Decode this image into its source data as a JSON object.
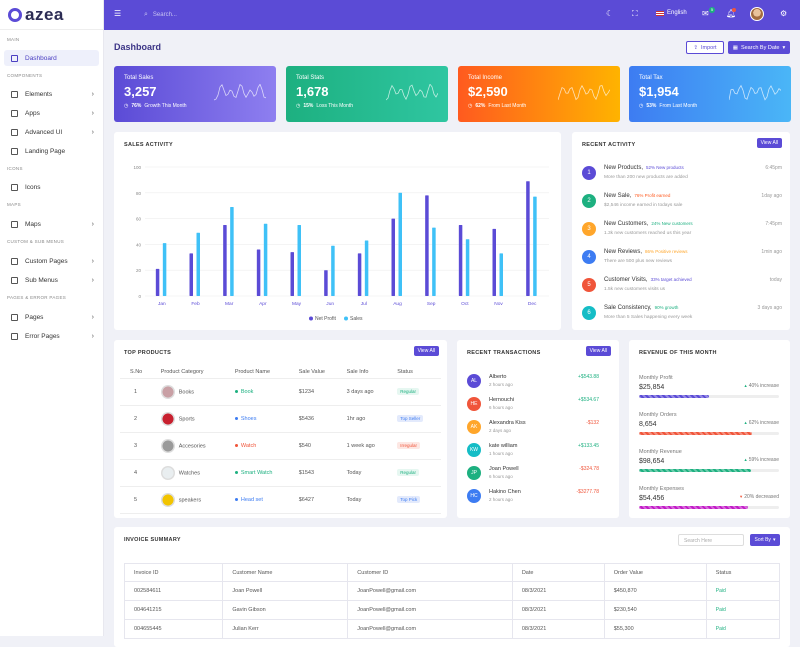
{
  "brand": {
    "name": "azea"
  },
  "sidebar": {
    "sections": [
      "MAIN",
      "COMPONENTS",
      "ICONS",
      "MAPS",
      "CUSTOM & SUB MENUS",
      "PAGES & ERROR PAGES"
    ],
    "items": [
      {
        "label": "Dashboard",
        "icon": "home-icon",
        "active": true
      },
      {
        "label": "Elements",
        "icon": "grid-icon"
      },
      {
        "label": "Apps",
        "icon": "apps-icon"
      },
      {
        "label": "Advanced UI",
        "icon": "layers-icon"
      },
      {
        "label": "Landing Page",
        "icon": "book-icon"
      },
      {
        "label": "Icons",
        "icon": "aperture-icon"
      },
      {
        "label": "Maps",
        "icon": "map-icon"
      },
      {
        "label": "Custom Pages",
        "icon": "file-icon"
      },
      {
        "label": "Sub Menus",
        "icon": "list-icon"
      },
      {
        "label": "Pages",
        "icon": "pages-icon"
      },
      {
        "label": "Error Pages",
        "icon": "alert-icon"
      }
    ]
  },
  "topbar": {
    "search_placeholder": "Search...",
    "language": "English",
    "mail_count": "5",
    "accent": "#5b4bd6"
  },
  "header": {
    "title": "Dashboard",
    "import_label": "Import",
    "date_label": "Search By Date"
  },
  "stats": [
    {
      "title": "Total Sales",
      "value": "3,257",
      "pct": "76%",
      "note": "Growth This Month",
      "colors": [
        "#5b4bd6",
        "#8e7ff0"
      ]
    },
    {
      "title": "Total Stats",
      "value": "1,678",
      "pct": "15%",
      "note": "Loss This Month",
      "colors": [
        "#1db080",
        "#2fc6a1"
      ]
    },
    {
      "title": "Total Income",
      "value": "$2,590",
      "pct": "62%",
      "note": "From Last Month",
      "colors": [
        "#ff5a1f",
        "#ffb300"
      ]
    },
    {
      "title": "Total Tax",
      "value": "$1,954",
      "pct": "53%",
      "note": "From Last Month",
      "colors": [
        "#3d7cf2",
        "#4ab6f7"
      ]
    }
  ],
  "sales": {
    "title": "SALES ACTIVITY",
    "legend": [
      "Net Profit",
      "Sales"
    ],
    "colors": [
      "#5b4bd6",
      "#3fc1f7"
    ]
  },
  "chart_data": {
    "type": "bar",
    "categories": [
      "Jan",
      "Feb",
      "Mar",
      "Apr",
      "May",
      "Jun",
      "Jul",
      "Aug",
      "Sep",
      "Oct",
      "Nov",
      "Dec"
    ],
    "series": [
      {
        "name": "Net Profit",
        "values": [
          21,
          33,
          55,
          36,
          34,
          20,
          33,
          60,
          78,
          55,
          52,
          89
        ]
      },
      {
        "name": "Sales",
        "values": [
          41,
          49,
          69,
          56,
          55,
          39,
          43,
          80,
          53,
          44,
          33,
          77
        ]
      }
    ],
    "yticks": [
      0,
      20,
      40,
      60,
      80,
      100
    ],
    "ylim": [
      0,
      100
    ],
    "legend": "bottom"
  },
  "activity": {
    "title": "RECENT ACTIVITY",
    "view_all": "View All",
    "items": [
      {
        "n": "1",
        "color": "#5b4bd6",
        "head": "New Products,",
        "tag": "52% New products",
        "tagcolor": "#5b4bd6",
        "desc": "More than 200 new products are added",
        "time": "6:45pm"
      },
      {
        "n": "2",
        "color": "#1db080",
        "head": "New Sale,",
        "tag": "76% Profit earned",
        "tagcolor": "#ff5a1f",
        "desc": "$2,546 income earned in todays sale",
        "time": "1day ago"
      },
      {
        "n": "3",
        "color": "#ffa62b",
        "head": "New Customers,",
        "tag": "24% New customers",
        "tagcolor": "#1db080",
        "desc": "1.3k new customers reached us this year",
        "time": "7:45pm"
      },
      {
        "n": "4",
        "color": "#3d7cf2",
        "head": "New Reviews,",
        "tag": "86% Positive reviews",
        "tagcolor": "#ffa62b",
        "desc": "There are 500 plus new reviews",
        "time": "1min ago"
      },
      {
        "n": "5",
        "color": "#f0553a",
        "head": "Customer Visits,",
        "tag": "33% target achieved",
        "tagcolor": "#5b4bd6",
        "desc": "1.5k new customers visits us",
        "time": "today"
      },
      {
        "n": "6",
        "color": "#15bdc6",
        "head": "Sale Consistency,",
        "tag": "90% growth",
        "tagcolor": "#1db080",
        "desc": "More than 5 Sales happening every week",
        "time": "3 days ago"
      }
    ]
  },
  "products": {
    "title": "TOP PRODUCTS",
    "view_all": "View All",
    "headers": [
      "S.No",
      "Product Category",
      "Product Name",
      "Sale Value",
      "Sale Info",
      "Status"
    ],
    "rows": [
      {
        "no": "1",
        "cat": "Books",
        "name": "Book",
        "namecolor": "#1db080",
        "value": "$1234",
        "info": "3 days ago",
        "status": "Regular",
        "sbg": "#e6f7f1",
        "sfg": "#1db080",
        "img": "#c9a0a5"
      },
      {
        "no": "2",
        "cat": "Sports",
        "name": "Shoes",
        "namecolor": "#3d7cf2",
        "value": "$5436",
        "info": "1hr ago",
        "status": "Top Seller",
        "sbg": "#e3eafc",
        "sfg": "#3d7cf2",
        "img": "#c8202f"
      },
      {
        "no": "3",
        "cat": "Accesories",
        "name": "Watch",
        "namecolor": "#f0553a",
        "value": "$540",
        "info": "1 week ago",
        "status": "Irregular",
        "sbg": "#fde7e3",
        "sfg": "#f0553a",
        "img": "#9a9a9a"
      },
      {
        "no": "4",
        "cat": "Watches",
        "name": "Smart Watch",
        "namecolor": "#1db080",
        "value": "$1543",
        "info": "Today",
        "status": "Regular",
        "sbg": "#e6f7f1",
        "sfg": "#1db080",
        "img": "#e9eef0"
      },
      {
        "no": "5",
        "cat": "speakers",
        "name": "Head set",
        "namecolor": "#3d7cf2",
        "value": "$6427",
        "info": "Today",
        "status": "Top Pick",
        "sbg": "#e3eafc",
        "sfg": "#3d7cf2",
        "img": "#f2c400"
      }
    ]
  },
  "transactions": {
    "title": "RECENT TRANSACTIONS",
    "view_all": "View All",
    "items": [
      {
        "ini": "AL",
        "color": "#5b4bd6",
        "name": "Alberto",
        "time": "2 hours ago",
        "amount": "+$543.88",
        "amtcolor": "#1db080"
      },
      {
        "ini": "HE",
        "color": "#f0553a",
        "name": "Hernouchi",
        "time": "6 hours ago",
        "amount": "+$534.67",
        "amtcolor": "#1db080"
      },
      {
        "ini": "AK",
        "color": "#ffa62b",
        "name": "Alexandra Kiss",
        "time": "2 days ago",
        "amount": "-$132",
        "amtcolor": "#f0553a"
      },
      {
        "ini": "KW",
        "color": "#15bdc6",
        "name": "kate william",
        "time": "1 hours ago",
        "amount": "+$133.45",
        "amtcolor": "#1db080"
      },
      {
        "ini": "JP",
        "color": "#1db080",
        "name": "Joan Powell",
        "time": "6 hours ago",
        "amount": "-$324.78",
        "amtcolor": "#f0553a"
      },
      {
        "ini": "HC",
        "color": "#3d7cf2",
        "name": "Hakino Chen",
        "time": "2 hours ago",
        "amount": "-$3277.78",
        "amtcolor": "#f0553a"
      }
    ]
  },
  "revenue": {
    "title": "REVENUE OF THIS MONTH",
    "items": [
      {
        "label": "Monthly Profit",
        "value": "$25,854",
        "change": "40% increase",
        "dir": "up",
        "fill": 0.5,
        "color": "#5b4bd6"
      },
      {
        "label": "Monthly Orders",
        "value": "8,654",
        "change": "62% increase",
        "dir": "up",
        "fill": 0.81,
        "color": "#f0553a"
      },
      {
        "label": "Monthly Revenue",
        "value": "$98,654",
        "change": "59% increase",
        "dir": "up",
        "fill": 0.8,
        "color": "#1db080"
      },
      {
        "label": "Monthly Expenses",
        "value": "$54,456",
        "change": "20% decreased",
        "dir": "down",
        "fill": 0.78,
        "color": "#c21bc7"
      }
    ]
  },
  "invoice": {
    "title": "INVOICE SUMMARY",
    "search_placeholder": "Search Here",
    "sort_label": "Sort By",
    "headers": [
      "Invoice ID",
      "Customer Name",
      "Customer ID",
      "Date",
      "Order Value",
      "Status"
    ],
    "rows": [
      {
        "id": "002584611",
        "name": "Joan Powell",
        "cid": "JoanPowell@gmail.com",
        "date": "08/3/2021",
        "value": "$450,870",
        "status": "Paid"
      },
      {
        "id": "004641215",
        "name": "Gavin Gibson",
        "cid": "JoanPowell@gmail.com",
        "date": "08/3/2021",
        "value": "$230,540",
        "status": "Paid"
      },
      {
        "id": "004655445",
        "name": "Julian Kerr",
        "cid": "JoanPowell@gmail.com",
        "date": "08/3/2021",
        "value": "$55,300",
        "status": "Paid"
      }
    ]
  }
}
